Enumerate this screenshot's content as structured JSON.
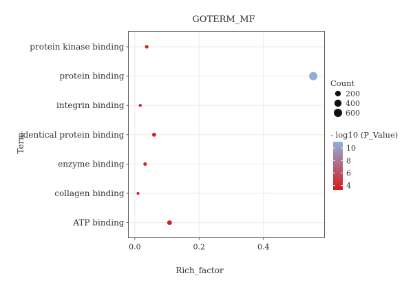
{
  "chart_data": {
    "type": "scatter",
    "title": "GOTERM_MF",
    "xlabel": "Rich_factor",
    "ylabel": "Term",
    "xlim": [
      -0.02,
      0.59
    ],
    "x_ticks": [
      0.0,
      0.2,
      0.4
    ],
    "x_tick_labels": [
      "0.0",
      "0.2",
      "0.4"
    ],
    "grid": true,
    "categories": [
      "protein kinase binding",
      "protein binding",
      "integrin binding",
      "identical protein binding",
      "enzyme binding",
      "collagen binding",
      "ATP binding"
    ],
    "points": [
      {
        "term": "protein kinase binding",
        "rich_factor": 0.037,
        "count": 30,
        "neg_log10_p": 3.8
      },
      {
        "term": "protein binding",
        "rich_factor": 0.555,
        "count": 600,
        "neg_log10_p": 10.8
      },
      {
        "term": "integrin binding",
        "rich_factor": 0.017,
        "count": 12,
        "neg_log10_p": 3.9
      },
      {
        "term": "identical protein binding",
        "rich_factor": 0.06,
        "count": 55,
        "neg_log10_p": 3.6
      },
      {
        "term": "enzyme binding",
        "rich_factor": 0.032,
        "count": 28,
        "neg_log10_p": 3.9
      },
      {
        "term": "collagen binding",
        "rich_factor": 0.01,
        "count": 8,
        "neg_log10_p": 3.7
      },
      {
        "term": "ATP binding",
        "rich_factor": 0.108,
        "count": 100,
        "neg_log10_p": 3.5
      }
    ],
    "size_legend": {
      "title": "Count",
      "values": [
        200,
        400,
        600
      ],
      "labels": [
        "200",
        "400",
        "600"
      ]
    },
    "color_legend": {
      "title": "- log10 (P_Value)",
      "range": [
        3.3,
        11.0
      ],
      "ticks": [
        4,
        6,
        8,
        10
      ],
      "tick_labels": [
        "4",
        "6",
        "8",
        "10"
      ],
      "low_color": "#d7191c",
      "high_color": "#8fb0de"
    }
  }
}
